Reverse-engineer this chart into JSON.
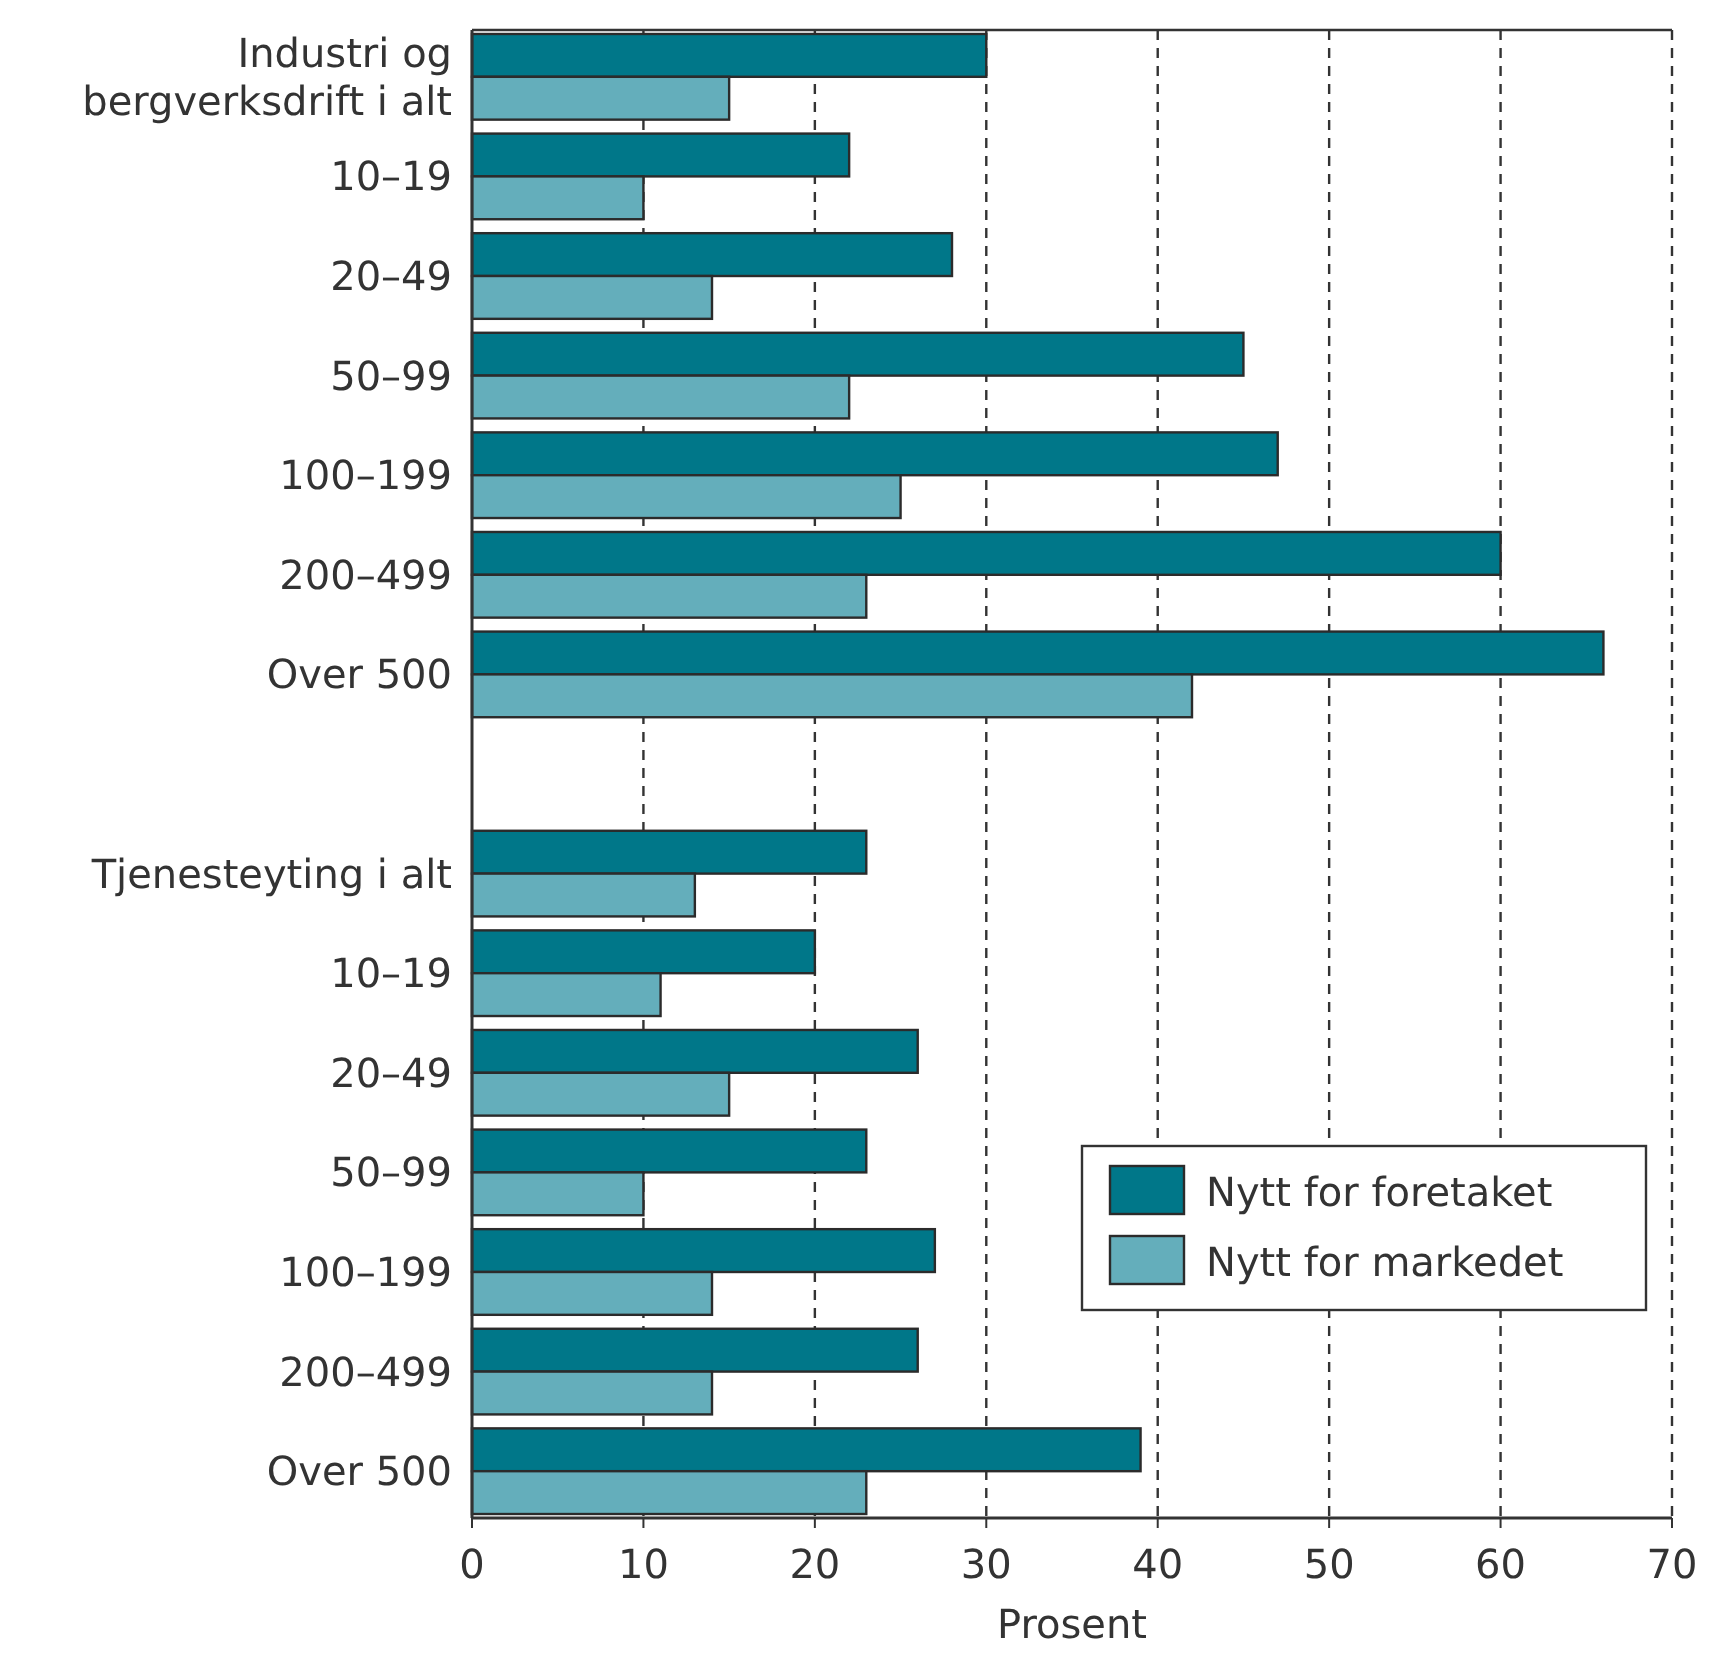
{
  "chart_data": {
    "type": "bar",
    "orientation": "horizontal",
    "xlabel": "Prosent",
    "categories": [
      "Industri og bergverksdrift i alt",
      "10–19",
      "20–49",
      "50–99",
      "100–199",
      "200–499",
      "Over 500",
      null,
      "Tjenesteyting i alt",
      "10–19",
      "20–49",
      "50–99",
      "100–199",
      "200–499",
      "Over 500"
    ],
    "series": [
      {
        "name": "Nytt for foretaket",
        "color": "#007789",
        "values": [
          30,
          22,
          28,
          45,
          47,
          60,
          66,
          null,
          23,
          20,
          26,
          23,
          27,
          26,
          39
        ]
      },
      {
        "name": "Nytt for markedet",
        "color": "#64aebb",
        "values": [
          15,
          10,
          14,
          22,
          25,
          23,
          42,
          null,
          13,
          11,
          15,
          10,
          14,
          14,
          23
        ]
      }
    ],
    "xlim": [
      0,
      70
    ],
    "xticks": [
      0,
      10,
      20,
      30,
      40,
      50,
      60,
      70
    ],
    "grid": "x",
    "legend": "bottom right"
  }
}
